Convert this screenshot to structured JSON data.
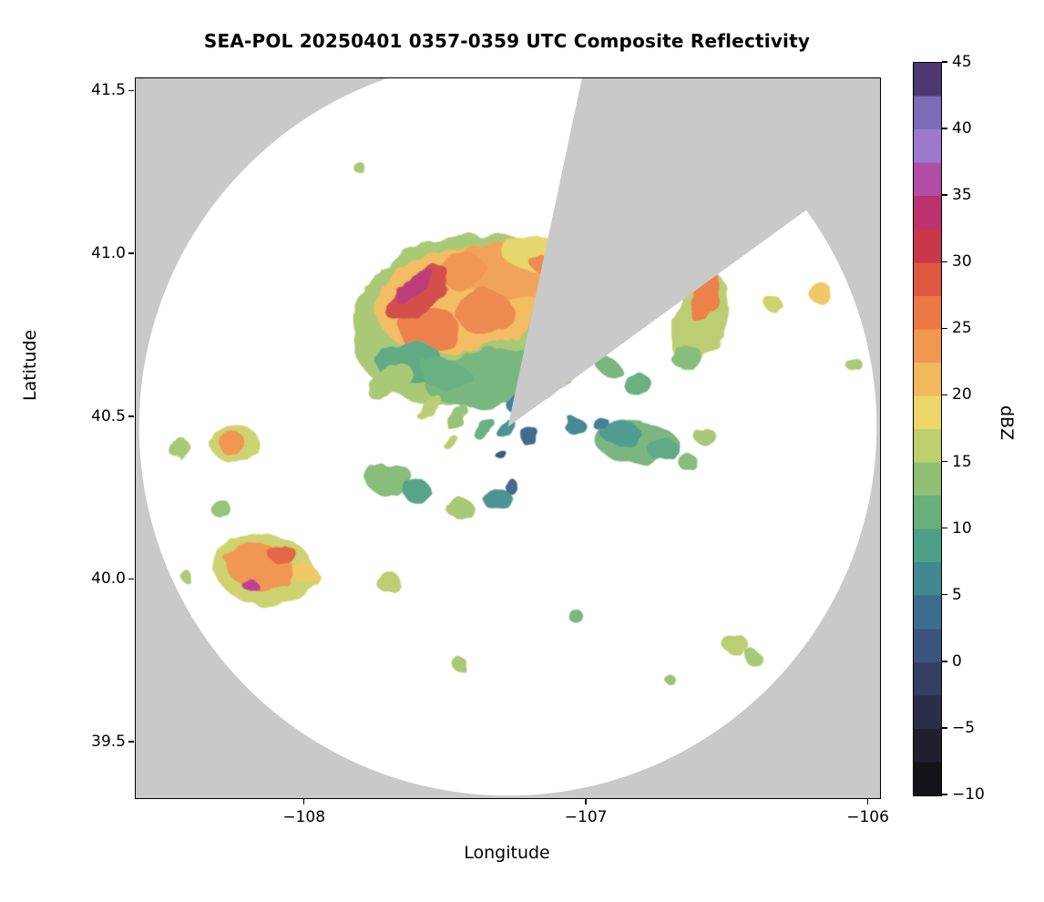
{
  "chart_data": {
    "type": "heatmap",
    "title": "SEA-POL 20250401 0357-0359 UTC Composite Reflectivity",
    "xlabel": "Longitude",
    "ylabel": "Latitude",
    "x_range": [
      -108.6,
      -105.96
    ],
    "y_range": [
      39.33,
      41.54
    ],
    "grid": false,
    "xticks": [
      {
        "v": -108,
        "label": "−108"
      },
      {
        "v": -107,
        "label": "−107"
      },
      {
        "v": -106,
        "label": "−106"
      }
    ],
    "yticks": [
      {
        "v": 41.5,
        "label": "41.5"
      },
      {
        "v": 41.0,
        "label": "41.0"
      },
      {
        "v": 40.5,
        "label": "40.5"
      },
      {
        "v": 40.0,
        "label": "40.0"
      },
      {
        "v": 39.5,
        "label": "39.5"
      }
    ],
    "colorbar": {
      "label": "dBZ",
      "min": -10,
      "max": 45,
      "segment_step": 2.5,
      "ticks": [
        45,
        40,
        35,
        30,
        25,
        20,
        15,
        10,
        5,
        0,
        -5,
        -10
      ],
      "tick_labels": [
        "45",
        "40",
        "35",
        "30",
        "25",
        "20",
        "15",
        "10",
        "5",
        "0",
        "−5",
        "−10"
      ]
    },
    "colormap_stops": [
      {
        "v": -10,
        "c": "#0d0d0d"
      },
      {
        "v": -7,
        "c": "#1d1a25"
      },
      {
        "v": -4,
        "c": "#2b2b45"
      },
      {
        "v": -1,
        "c": "#364067"
      },
      {
        "v": 2,
        "c": "#3b5a86"
      },
      {
        "v": 5,
        "c": "#3e7b93"
      },
      {
        "v": 8,
        "c": "#479a8c"
      },
      {
        "v": 11,
        "c": "#64ae7d"
      },
      {
        "v": 14,
        "c": "#94c173"
      },
      {
        "v": 16.5,
        "c": "#c3d06d"
      },
      {
        "v": 18.5,
        "c": "#ecd868"
      },
      {
        "v": 21,
        "c": "#f2bb5d"
      },
      {
        "v": 23.5,
        "c": "#f19a50"
      },
      {
        "v": 26,
        "c": "#ec7c46"
      },
      {
        "v": 28.5,
        "c": "#e05b3f"
      },
      {
        "v": 31,
        "c": "#ca3a47"
      },
      {
        "v": 33,
        "c": "#b92d5d"
      },
      {
        "v": 35,
        "c": "#bd3a8b"
      },
      {
        "v": 37,
        "c": "#ab58b5"
      },
      {
        "v": 39,
        "c": "#9a7ecd"
      },
      {
        "v": 41,
        "c": "#8170bd"
      },
      {
        "v": 43,
        "c": "#5c4787"
      },
      {
        "v": 45,
        "c": "#33204e"
      }
    ],
    "radar": {
      "center_lon": -107.28,
      "center_lat": 40.47,
      "radius_deg_lon": 1.308,
      "missing_sector_azimuth_deg": [
        12,
        54
      ]
    },
    "colors": {
      "mask": "#c9c9c9",
      "coverage": "#ffffff",
      "frame": "#000000"
    },
    "cell_format": [
      "lon",
      "lat",
      "rx_deg",
      "ry_deg",
      "rot_deg",
      "dbz"
    ],
    "cells": [
      [
        -107.42,
        40.8,
        0.42,
        0.26,
        -12,
        15
      ],
      [
        -107.3,
        40.62,
        0.28,
        0.09,
        -5,
        12
      ],
      [
        -107.45,
        40.86,
        0.3,
        0.16,
        -10,
        21
      ],
      [
        -107.27,
        40.95,
        0.2,
        0.09,
        8,
        23
      ],
      [
        -107.56,
        40.77,
        0.11,
        0.07,
        0,
        26
      ],
      [
        -107.36,
        40.82,
        0.1,
        0.07,
        0,
        25
      ],
      [
        -107.44,
        40.95,
        0.08,
        0.06,
        0,
        24
      ],
      [
        -107.6,
        40.88,
        0.135,
        0.05,
        -40,
        30
      ],
      [
        -107.61,
        40.9,
        0.085,
        0.028,
        -40,
        34
      ],
      [
        -107.63,
        40.67,
        0.12,
        0.065,
        0,
        10
      ],
      [
        -107.5,
        40.63,
        0.09,
        0.045,
        10,
        11
      ],
      [
        -107.18,
        41.0,
        0.13,
        0.055,
        10,
        18
      ],
      [
        -107.12,
        40.96,
        0.09,
        0.035,
        18,
        25
      ],
      [
        -107.1,
        40.93,
        0.05,
        0.05,
        0,
        20
      ],
      [
        -107.7,
        40.61,
        0.09,
        0.045,
        -30,
        15
      ],
      [
        -107.56,
        40.53,
        0.055,
        0.022,
        -45,
        16
      ],
      [
        -107.46,
        40.5,
        0.05,
        0.02,
        -45,
        14
      ],
      [
        -107.37,
        40.47,
        0.045,
        0.02,
        -45,
        11
      ],
      [
        -107.28,
        40.46,
        0.04,
        0.02,
        -45,
        7
      ],
      [
        -107.2,
        40.44,
        0.035,
        0.02,
        -45,
        3
      ],
      [
        -107.23,
        40.54,
        0.05,
        0.025,
        -40,
        5
      ],
      [
        -107.16,
        40.6,
        0.035,
        0.05,
        15,
        11
      ],
      [
        -107.48,
        40.42,
        0.03,
        0.015,
        -45,
        16
      ],
      [
        -107.05,
        40.48,
        0.04,
        0.022,
        0,
        6
      ],
      [
        -106.6,
        40.8,
        0.09,
        0.15,
        18,
        16
      ],
      [
        -106.58,
        40.87,
        0.045,
        0.085,
        18,
        26
      ],
      [
        -106.64,
        40.68,
        0.055,
        0.04,
        0,
        13
      ],
      [
        -106.82,
        40.6,
        0.05,
        0.035,
        0,
        11
      ],
      [
        -106.17,
        40.88,
        0.04,
        0.033,
        0,
        20
      ],
      [
        -106.33,
        40.84,
        0.03,
        0.025,
        0,
        17
      ],
      [
        -106.05,
        40.66,
        0.028,
        0.022,
        0,
        15
      ],
      [
        -106.93,
        40.66,
        0.065,
        0.028,
        40,
        12
      ],
      [
        -106.82,
        40.42,
        0.15,
        0.065,
        5,
        12
      ],
      [
        -106.88,
        40.45,
        0.07,
        0.035,
        0,
        8
      ],
      [
        -106.73,
        40.4,
        0.06,
        0.035,
        0,
        10
      ],
      [
        -106.95,
        40.48,
        0.03,
        0.022,
        0,
        5
      ],
      [
        -106.64,
        40.36,
        0.035,
        0.025,
        0,
        13
      ],
      [
        -106.58,
        40.44,
        0.04,
        0.025,
        0,
        15
      ],
      [
        -107.7,
        40.31,
        0.08,
        0.055,
        0,
        13
      ],
      [
        -107.6,
        40.27,
        0.05,
        0.035,
        0,
        9
      ],
      [
        -107.45,
        40.22,
        0.05,
        0.03,
        0,
        15
      ],
      [
        -107.32,
        40.25,
        0.05,
        0.035,
        0,
        7
      ],
      [
        -107.27,
        40.29,
        0.025,
        0.02,
        0,
        3
      ],
      [
        -107.7,
        39.99,
        0.045,
        0.03,
        0,
        16
      ],
      [
        -107.31,
        40.39,
        0.02,
        0.015,
        0,
        1
      ],
      [
        -108.25,
        40.42,
        0.09,
        0.055,
        0,
        17
      ],
      [
        -108.26,
        40.42,
        0.05,
        0.035,
        0,
        24
      ],
      [
        -108.44,
        40.4,
        0.04,
        0.03,
        0,
        15
      ],
      [
        -108.3,
        40.22,
        0.035,
        0.028,
        0,
        14
      ],
      [
        -108.14,
        40.03,
        0.18,
        0.11,
        8,
        17
      ],
      [
        -108.16,
        40.04,
        0.12,
        0.07,
        8,
        24
      ],
      [
        -108.08,
        40.08,
        0.05,
        0.03,
        0,
        28
      ],
      [
        -108.19,
        39.98,
        0.026,
        0.02,
        0,
        35
      ],
      [
        -108.0,
        40.02,
        0.045,
        0.026,
        0,
        20
      ],
      [
        -108.42,
        40.01,
        0.02,
        0.017,
        0,
        15
      ],
      [
        -107.45,
        39.74,
        0.028,
        0.02,
        0,
        15
      ],
      [
        -107.04,
        39.89,
        0.026,
        0.02,
        0,
        12
      ],
      [
        -106.47,
        39.8,
        0.055,
        0.028,
        12,
        16
      ],
      [
        -106.41,
        39.76,
        0.03,
        0.022,
        0,
        15
      ],
      [
        -106.7,
        39.69,
        0.018,
        0.015,
        0,
        14
      ],
      [
        -107.8,
        41.26,
        0.02,
        0.018,
        0,
        15
      ]
    ]
  }
}
